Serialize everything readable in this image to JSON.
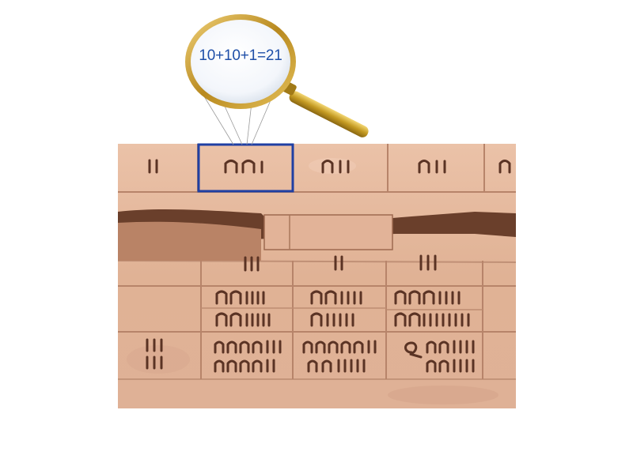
{
  "magnifier": {
    "equation": "10+10+1=21"
  },
  "colors": {
    "stone_base": "#e4b79c",
    "stone_light": "#edc8b2",
    "stone_shadow": "#a8735a",
    "carving": "#5a3324",
    "highlight_box": "#1f3fa3",
    "lens_rim": "#c9a23a",
    "handle": "#b8901c",
    "equation_text": "#1f4fa8"
  }
}
